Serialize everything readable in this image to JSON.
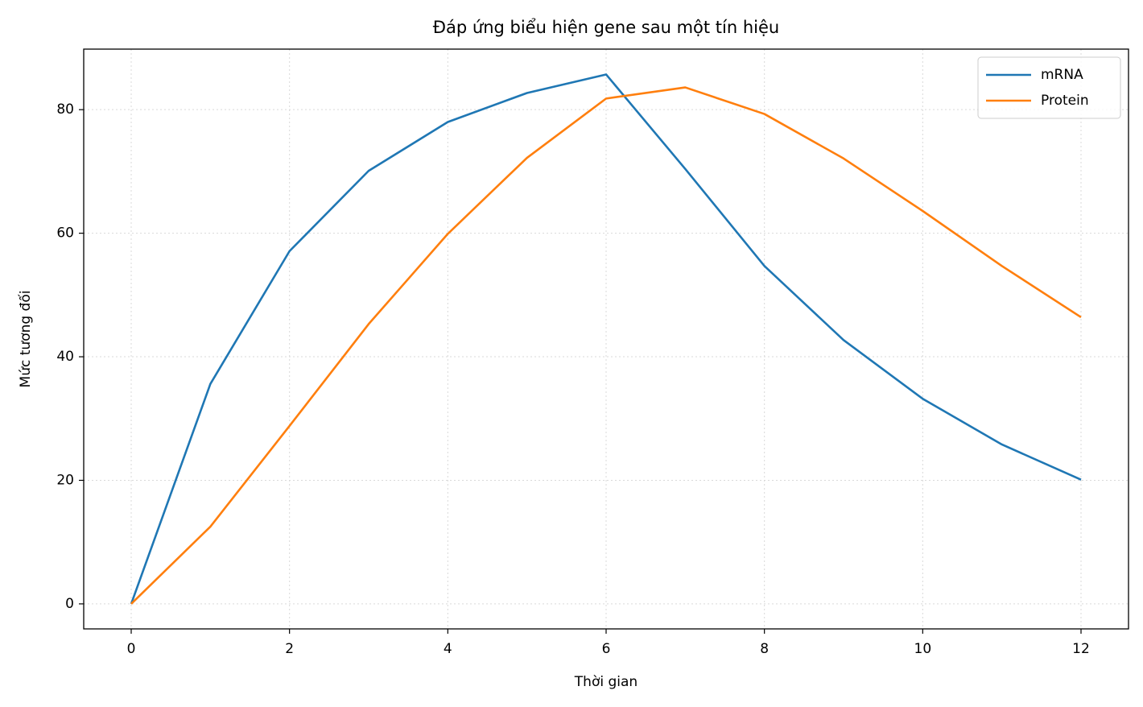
{
  "chart_data": {
    "type": "line",
    "title": "Đáp ứng biểu hiện gene sau một tín hiệu",
    "xlabel": "Thời gian",
    "ylabel": "Mức tương đối",
    "x": [
      0,
      1,
      2,
      3,
      4,
      5,
      6,
      7,
      8,
      9,
      10,
      11,
      12
    ],
    "series": [
      {
        "name": "mRNA",
        "color": "#1f77b4",
        "values": [
          0,
          35.6,
          57.1,
          70.1,
          78.0,
          82.7,
          85.7,
          70.4,
          54.7,
          42.7,
          33.2,
          25.8,
          20.1
        ]
      },
      {
        "name": "Protein",
        "color": "#ff7f0e",
        "values": [
          0,
          12.5,
          28.8,
          45.3,
          59.9,
          72.2,
          81.8,
          83.6,
          79.3,
          72.1,
          63.6,
          54.7,
          46.4
        ]
      }
    ],
    "xlim": [
      -0.6,
      12.6
    ],
    "xticks": [
      0,
      2,
      4,
      6,
      8,
      10,
      12
    ],
    "ylim": [
      -4.05,
      89.8
    ],
    "yticks": [
      0,
      20,
      40,
      60,
      80
    ],
    "grid": true,
    "legend": "upper right"
  }
}
